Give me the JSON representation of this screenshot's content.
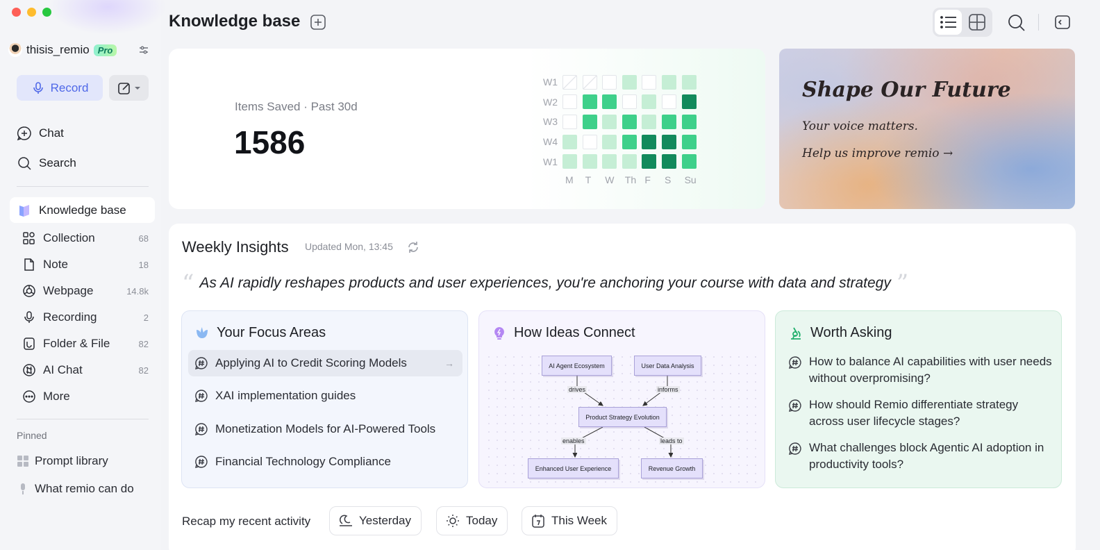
{
  "sidebar": {
    "username": "thisis_remio",
    "plan_badge": "Pro",
    "record_label": "Record",
    "nav": {
      "chat": "Chat",
      "search": "Search",
      "knowledge_base": "Knowledge base"
    },
    "items": [
      {
        "label": "Collection",
        "count": "68",
        "icon": "collection-icon"
      },
      {
        "label": "Note",
        "count": "18",
        "icon": "note-icon"
      },
      {
        "label": "Webpage",
        "count": "14.8k",
        "icon": "globe-icon"
      },
      {
        "label": "Recording",
        "count": "2",
        "icon": "mic-icon"
      },
      {
        "label": "Folder & File",
        "count": "82",
        "icon": "folder-icon"
      },
      {
        "label": "AI Chat",
        "count": "82",
        "icon": "ai-chat-icon"
      },
      {
        "label": "More",
        "count": "",
        "icon": "more-icon"
      }
    ],
    "pinned_label": "Pinned",
    "pinned": [
      {
        "label": "Prompt library",
        "icon": "grid-icon"
      },
      {
        "label": "What remio can do",
        "icon": "mic-icon"
      }
    ]
  },
  "header": {
    "title": "Knowledge base"
  },
  "stats": {
    "label": "Items Saved · Past 30d",
    "value": "1586",
    "weeks": [
      "W1",
      "W2",
      "W3",
      "W4",
      "W1"
    ],
    "days": [
      "M",
      "T",
      "W",
      "Th",
      "F",
      "S",
      "Su"
    ],
    "levels": [
      [
        "x",
        "x",
        0,
        1,
        0,
        1,
        1
      ],
      [
        0,
        2,
        2,
        0,
        1,
        0,
        3
      ],
      [
        0,
        2,
        1,
        2,
        1,
        2,
        2
      ],
      [
        1,
        0,
        1,
        2,
        3,
        3,
        2
      ],
      [
        1,
        1,
        1,
        1,
        3,
        3,
        2
      ]
    ]
  },
  "promo": {
    "title": "Shape Our Future",
    "subtitle": "Your voice matters.",
    "link": "Help us improve remio →"
  },
  "insights": {
    "title": "Weekly Insights",
    "updated": "Updated Mon, 13:45",
    "quote": "As AI rapidly reshapes products and user experiences, you're anchoring your course with data and strategy",
    "focus": {
      "title": "Your Focus Areas",
      "items": [
        "Applying AI to Credit Scoring Models",
        "XAI implementation guides",
        "Monetization Models for AI-Powered Tools",
        "Financial Technology Compliance"
      ]
    },
    "connect": {
      "title": "How Ideas Connect",
      "nodes": {
        "a": "AI Agent Ecosystem",
        "b": "User Data Analysis",
        "c": "Product Strategy Evolution",
        "d": "Enhanced User Experience",
        "e": "Revenue Growth"
      },
      "edges": {
        "ac": "drives",
        "bc": "informs",
        "cd": "enables",
        "ce": "leads to"
      }
    },
    "asking": {
      "title": "Worth Asking",
      "items": [
        "How to balance AI capabilities with user needs without overpromising?",
        "How should Remio differentiate strategy across user lifecycle stages?",
        "What challenges block Agentic AI adoption in productivity tools?"
      ]
    }
  },
  "recap": {
    "label": "Recap my recent activity",
    "buttons": [
      "Yesterday",
      "Today",
      "This Week"
    ]
  },
  "colors": {
    "accent": "#4f68e8",
    "heat_light": "#c5eed5",
    "heat_mid": "#3ed08a",
    "heat_dark": "#128a5c"
  }
}
